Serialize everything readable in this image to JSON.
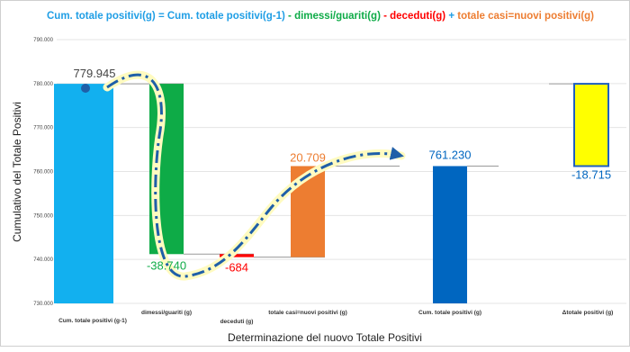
{
  "colors": {
    "cum_prev": "#12b0ef",
    "dimessi": "#0eab47",
    "deceduti": "#ff0000",
    "nuovi": "#ed7d31",
    "cum_new": "#0066c0",
    "delta": "#ffff00",
    "delta_border": "#1f5fbf",
    "title_blue": "#1f9ee5",
    "arrow": "#1f5fa8",
    "arrow_glow": "#fffbc0"
  },
  "chart_data": {
    "type": "bar",
    "subtype": "waterfall",
    "title": {
      "parts": [
        {
          "text": "Cum. totale positivi(g)",
          "color": "#1f9ee5"
        },
        {
          "text": " = ",
          "color": "#1f9ee5"
        },
        {
          "text": "Cum. totale positivi(g-1)",
          "color": "#1f9ee5"
        },
        {
          "text": " - dimessi/guariti(g)",
          "color": "#0eab47"
        },
        {
          "text": " - deceduti(g)",
          "color": "#ff0000"
        },
        {
          "text": " + ",
          "color": "#1f9ee5"
        },
        {
          "text": "totale casi=nuovi positivi(g)",
          "color": "#ed7d31"
        }
      ]
    },
    "xlabel": "Determinazione del nuovo Totale Positivi",
    "ylabel": "Cumulativo del Totale Positivi",
    "ylim": [
      730000,
      790000
    ],
    "yticks": [
      730000,
      740000,
      750000,
      760000,
      770000,
      780000,
      790000
    ],
    "ytick_labels": [
      "730.000",
      "740.000",
      "750.000",
      "760.000",
      "770.000",
      "780.000",
      "790.000"
    ],
    "grid": true,
    "categories": [
      "Cum. totale positivi (g-1)",
      "dimessi/guariti (g)",
      "deceduti (g)",
      "totale casi=nuovi positivi (g)",
      "Cum. totale positivi (g)",
      "Δtotale positivi (g)"
    ],
    "bars": [
      {
        "category": "Cum. totale positivi (g-1)",
        "start": 730000,
        "end": 779945,
        "label": "779.945",
        "color": "#12b0ef"
      },
      {
        "category": "dimessi/guariti (g)",
        "start": 779945,
        "end": 741205,
        "label": "-38.740",
        "color": "#0eab47"
      },
      {
        "category": "deceduti (g)",
        "start": 741205,
        "end": 740521,
        "label": "-684",
        "color": "#ff0000"
      },
      {
        "category": "totale casi=nuovi positivi (g)",
        "start": 740521,
        "end": 761230,
        "label": "20.709",
        "color": "#ed7d31"
      },
      {
        "category": "Cum. totale positivi (g)",
        "start": 730000,
        "end": 761230,
        "label": "761.230",
        "color": "#0066c0"
      },
      {
        "category": "Δtotale positivi (g)",
        "start": 779945,
        "end": 761230,
        "label": "-18.715",
        "color": "#ffff00"
      }
    ]
  }
}
